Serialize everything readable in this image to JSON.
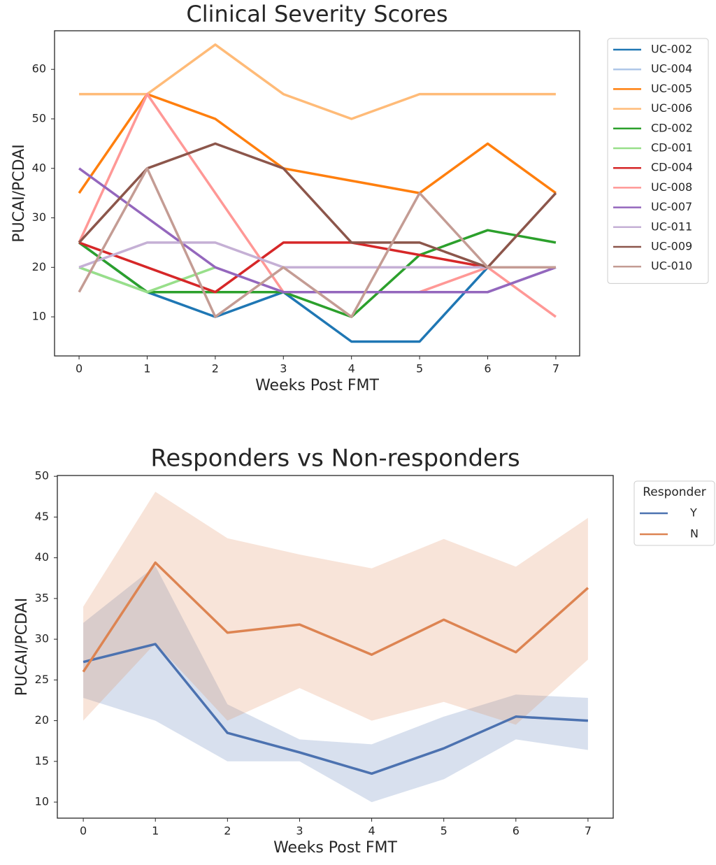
{
  "chart_data": [
    {
      "type": "line",
      "title": "Clinical Severity Scores",
      "xlabel": "Weeks Post FMT",
      "ylabel": "PUCAI/PCDAI",
      "x": [
        0,
        1,
        2,
        3,
        4,
        5,
        6,
        7
      ],
      "xlim": [
        -0.36,
        7.35
      ],
      "ylim": [
        2.1,
        67.8
      ],
      "xticks": [
        0,
        1,
        2,
        3,
        4,
        5,
        6,
        7
      ],
      "yticks": [
        10,
        20,
        30,
        40,
        50,
        60
      ],
      "grid": false,
      "legend": "outside-upper-right",
      "series": [
        {
          "name": "UC-002",
          "color": "#1f77b4",
          "values": [
            25,
            15,
            10,
            15,
            5,
            5,
            20,
            20
          ]
        },
        {
          "name": "UC-004",
          "color": "#aec7e8",
          "values": [
            20,
            15,
            15,
            15,
            15,
            15,
            15,
            20
          ]
        },
        {
          "name": "UC-005",
          "color": "#ff7f0e",
          "values": [
            35,
            55,
            50,
            40,
            37.5,
            35,
            45,
            35
          ]
        },
        {
          "name": "UC-006",
          "color": "#ffbb78",
          "values": [
            55,
            55,
            65,
            55,
            50,
            55,
            55,
            55
          ]
        },
        {
          "name": "CD-002",
          "color": "#2ca02c",
          "values": [
            25,
            15,
            15,
            15,
            10,
            22.5,
            27.5,
            25
          ]
        },
        {
          "name": "CD-001",
          "color": "#98df8a",
          "values": [
            20,
            15,
            20,
            null,
            null,
            null,
            null,
            null
          ]
        },
        {
          "name": "CD-004",
          "color": "#d62728",
          "values": [
            25,
            20,
            15,
            25,
            25,
            22.5,
            20,
            null
          ]
        },
        {
          "name": "UC-008",
          "color": "#ff9896",
          "values": [
            25,
            55,
            35,
            15,
            15,
            15,
            20,
            10
          ]
        },
        {
          "name": "UC-007",
          "color": "#9467bd",
          "values": [
            40,
            30,
            20,
            15,
            15,
            15,
            15,
            20
          ]
        },
        {
          "name": "UC-011",
          "color": "#c5b0d5",
          "values": [
            20,
            25,
            25,
            20,
            20,
            20,
            20,
            20
          ]
        },
        {
          "name": "UC-009",
          "color": "#8c564b",
          "values": [
            25,
            40,
            45,
            40,
            25,
            25,
            20,
            35
          ]
        },
        {
          "name": "UC-010",
          "color": "#c49c94",
          "values": [
            15,
            40,
            10,
            20,
            10,
            35,
            20,
            20
          ]
        }
      ]
    },
    {
      "type": "line",
      "title": "Responders vs Non-responders",
      "xlabel": "Weeks Post FMT",
      "ylabel": "PUCAI/PCDAI",
      "x": [
        0,
        1,
        2,
        3,
        4,
        5,
        6,
        7
      ],
      "xlim": [
        -0.36,
        7.35
      ],
      "ylim": [
        8.03,
        50.1
      ],
      "xticks": [
        0,
        1,
        2,
        3,
        4,
        5,
        6,
        7
      ],
      "yticks": [
        10,
        15,
        20,
        25,
        30,
        35,
        40,
        45,
        50
      ],
      "grid": false,
      "legend": "outside-upper-right",
      "legend_title": "Responder",
      "series": [
        {
          "name": "Y",
          "color": "#4c72b0",
          "values": [
            27.2,
            29.4,
            18.5,
            16.1,
            13.5,
            16.6,
            20.5,
            20.0
          ],
          "ci_lower": [
            22.8,
            20,
            15,
            15,
            10,
            12.8,
            17.7,
            16.4
          ],
          "ci_upper": [
            32,
            39,
            22,
            17.7,
            17.1,
            20.5,
            23.2,
            22.8
          ]
        },
        {
          "name": "N",
          "color": "#dd8452",
          "values": [
            26,
            39.4,
            30.8,
            31.8,
            28.1,
            32.4,
            28.4,
            36.3
          ],
          "ci_lower": [
            20,
            29.5,
            20,
            24,
            20,
            22.3,
            19.5,
            27.5
          ],
          "ci_upper": [
            34,
            48.1,
            42.4,
            40.4,
            38.7,
            42.3,
            38.9,
            44.9
          ]
        }
      ]
    }
  ]
}
